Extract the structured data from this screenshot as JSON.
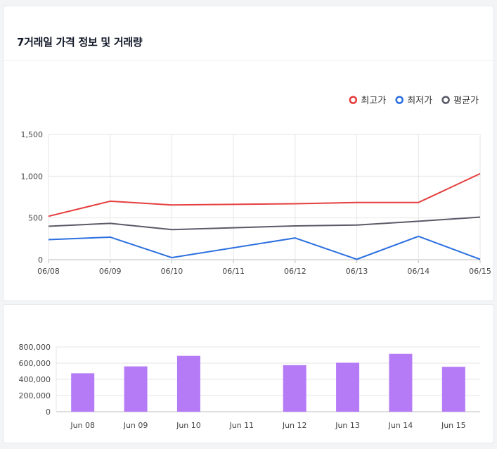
{
  "header": {
    "title": "7거래일 가격 정보 및 거래량"
  },
  "chart_data": [
    {
      "type": "line",
      "x": [
        "06/08",
        "06/09",
        "06/10",
        "06/11",
        "06/12",
        "06/13",
        "06/14",
        "06/15"
      ],
      "series": [
        {
          "name": "최고가",
          "color": "#e53e3e",
          "values": [
            520,
            700,
            655,
            null,
            670,
            685,
            685,
            1030
          ]
        },
        {
          "name": "최저가",
          "color": "#2b6fe0",
          "values": [
            240,
            270,
            25,
            null,
            260,
            5,
            280,
            5
          ]
        },
        {
          "name": "평균가",
          "color": "#5a5a68",
          "values": [
            400,
            435,
            360,
            null,
            405,
            415,
            460,
            510
          ]
        }
      ],
      "ylim": [
        0,
        1500
      ],
      "yticks": [
        "0",
        "500",
        "1,000",
        "1,500"
      ],
      "ytick_values": [
        0,
        500,
        1000,
        1500
      ],
      "grid": true,
      "legend": "top-right"
    },
    {
      "type": "bar",
      "categories": [
        "Jun 08",
        "Jun 09",
        "Jun 10",
        "Jun 11",
        "Jun 12",
        "Jun 13",
        "Jun 14",
        "Jun 15"
      ],
      "values": [
        475000,
        560000,
        690000,
        0,
        575000,
        605000,
        715000,
        555000
      ],
      "color": "#b57bf7",
      "ylim": [
        0,
        800000
      ],
      "yticks": [
        "0",
        "200,000",
        "400,000",
        "600,000",
        "800,000"
      ],
      "ytick_values": [
        0,
        200000,
        400000,
        600000,
        800000
      ],
      "grid": true
    }
  ]
}
